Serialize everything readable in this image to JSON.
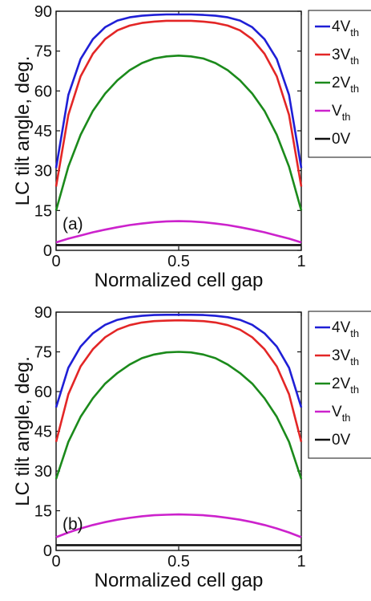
{
  "chart_data": [
    {
      "type": "line",
      "annotation": "(a)",
      "xlabel": "Normalized cell gap",
      "ylabel": "LC tilt angle, deg.",
      "xlim": [
        0,
        1
      ],
      "ylim": [
        0,
        90
      ],
      "xticks": [
        0,
        0.5,
        1
      ],
      "xtick_labels": [
        "0",
        "0.5",
        "1"
      ],
      "yticks": [
        0,
        15,
        30,
        45,
        60,
        75,
        90
      ],
      "ytick_labels": [
        "0",
        "15",
        "30",
        "45",
        "60",
        "75",
        "90"
      ],
      "grid": false,
      "legend_placement": "outside-right",
      "x": [
        0,
        0.05,
        0.1,
        0.15,
        0.2,
        0.25,
        0.3,
        0.35,
        0.4,
        0.45,
        0.5,
        0.55,
        0.6,
        0.65,
        0.7,
        0.75,
        0.8,
        0.85,
        0.9,
        0.95,
        1
      ],
      "series": [
        {
          "name": "4V",
          "sub": "th",
          "color": "#1f1fd6",
          "values": [
            31,
            58.5,
            72,
            79.5,
            84,
            86.5,
            87.7,
            88.3,
            88.6,
            88.8,
            88.8,
            88.8,
            88.6,
            88.3,
            87.7,
            86.5,
            84,
            79.5,
            72,
            58.5,
            31
          ]
        },
        {
          "name": "3V",
          "sub": "th",
          "color": "#e32626",
          "values": [
            24,
            51,
            65.5,
            74,
            79.5,
            82.8,
            84.6,
            85.6,
            86.1,
            86.4,
            86.4,
            86.4,
            86.1,
            85.6,
            84.6,
            82.8,
            79.5,
            74,
            65.5,
            51,
            24
          ]
        },
        {
          "name": "2V",
          "sub": "th",
          "color": "#1b8a1b",
          "values": [
            15,
            31.5,
            43.5,
            52.5,
            59,
            64,
            67.8,
            70.5,
            72.2,
            73,
            73.3,
            73,
            72.2,
            70.5,
            67.8,
            64,
            59,
            52.5,
            43.5,
            31.5,
            15
          ]
        },
        {
          "name": "V",
          "sub": "th",
          "color": "#cc22cc",
          "values": [
            3,
            4.4,
            5.6,
            6.8,
            7.8,
            8.7,
            9.5,
            10.1,
            10.6,
            10.9,
            11,
            10.9,
            10.6,
            10.1,
            9.5,
            8.7,
            7.8,
            6.8,
            5.6,
            4.4,
            3
          ]
        },
        {
          "name": "0V",
          "sub": "",
          "color": "#111111",
          "values": [
            2,
            2,
            2,
            2,
            2,
            2,
            2,
            2,
            2,
            2,
            2,
            2,
            2,
            2,
            2,
            2,
            2,
            2,
            2,
            2,
            2
          ]
        }
      ]
    },
    {
      "type": "line",
      "annotation": "(b)",
      "xlabel": "Normalized cell gap",
      "ylabel": "LC tilt angle, deg.",
      "xlim": [
        0,
        1
      ],
      "ylim": [
        0,
        90
      ],
      "xticks": [
        0,
        0.5,
        1
      ],
      "xtick_labels": [
        "0",
        "0.5",
        "1"
      ],
      "yticks": [
        0,
        15,
        30,
        45,
        60,
        75,
        90
      ],
      "ytick_labels": [
        "0",
        "15",
        "30",
        "45",
        "60",
        "75",
        "90"
      ],
      "grid": false,
      "legend_placement": "outside-right",
      "x": [
        0,
        0.05,
        0.1,
        0.15,
        0.2,
        0.25,
        0.3,
        0.35,
        0.4,
        0.45,
        0.5,
        0.55,
        0.6,
        0.65,
        0.7,
        0.75,
        0.8,
        0.85,
        0.9,
        0.95,
        1
      ],
      "series": [
        {
          "name": "4V",
          "sub": "th",
          "color": "#1f1fd6",
          "values": [
            54,
            69,
            77,
            82,
            85.2,
            87.1,
            88.1,
            88.6,
            88.9,
            89,
            89,
            89,
            88.9,
            88.6,
            88.1,
            87.1,
            85.2,
            82,
            77,
            69,
            54
          ]
        },
        {
          "name": "3V",
          "sub": "th",
          "color": "#e32626",
          "values": [
            41,
            59,
            69.5,
            76,
            80.5,
            83.4,
            85.1,
            86.1,
            86.6,
            86.8,
            86.9,
            86.8,
            86.6,
            86.1,
            85.1,
            83.4,
            80.5,
            76,
            69.5,
            59,
            41
          ]
        },
        {
          "name": "2V",
          "sub": "th",
          "color": "#1b8a1b",
          "values": [
            27,
            41,
            50.5,
            57.5,
            63,
            67,
            70.2,
            72.6,
            74,
            74.8,
            75,
            74.8,
            74,
            72.6,
            70.2,
            67,
            63,
            57.5,
            50.5,
            41,
            27
          ]
        },
        {
          "name": "V",
          "sub": "th",
          "color": "#cc22cc",
          "values": [
            5,
            6.8,
            8.3,
            9.6,
            10.7,
            11.6,
            12.3,
            12.9,
            13.3,
            13.5,
            13.6,
            13.5,
            13.3,
            12.9,
            12.3,
            11.6,
            10.7,
            9.6,
            8.3,
            6.8,
            5
          ]
        },
        {
          "name": "0V",
          "sub": "",
          "color": "#111111",
          "values": [
            2,
            2,
            2,
            2,
            2,
            2,
            2,
            2,
            2,
            2,
            2,
            2,
            2,
            2,
            2,
            2,
            2,
            2,
            2,
            2,
            2
          ]
        }
      ]
    }
  ]
}
